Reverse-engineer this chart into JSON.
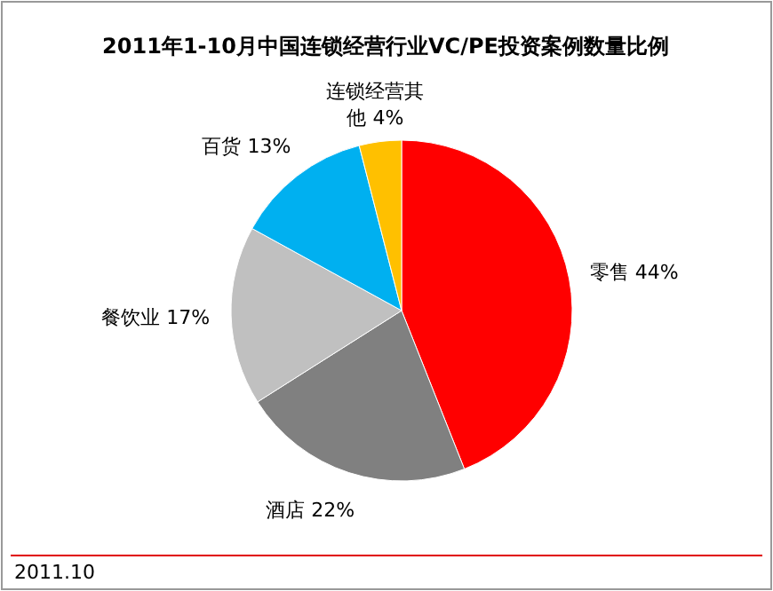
{
  "chart_data": {
    "type": "pie",
    "title": "2011年1-10月中国连锁经营行业VC/PE投资案例数量比例",
    "categories": [
      "零售",
      "酒店",
      "餐饮业",
      "百货",
      "连锁经营其他"
    ],
    "values": [
      44,
      22,
      17,
      13,
      4
    ],
    "value_labels": [
      "44%",
      "22%",
      "17%",
      "13%",
      "4%"
    ],
    "colors": [
      "#ff0000",
      "#808080",
      "#c0c0c0",
      "#00b0f0",
      "#ffc000"
    ],
    "annotations": [
      "2011.10"
    ]
  }
}
